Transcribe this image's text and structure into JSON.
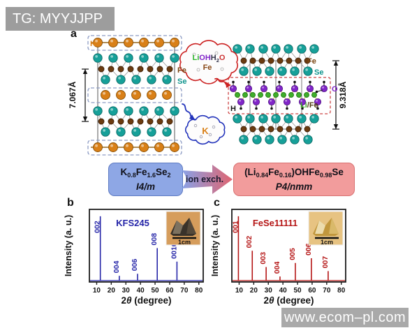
{
  "tag": "TG: MYYJJPP",
  "website": "www.ecom–pl.com",
  "panel_a": {
    "label": "a",
    "left_structure": {
      "k_label": "K",
      "fe_label": "Fe",
      "se_label": "Se",
      "height_label": "7.067Å",
      "k_color": "#d98018",
      "fe_color": "#6b3b10",
      "se_color": "#16a099"
    },
    "right_structure": {
      "fe_label": "Fe",
      "se_label": "Se",
      "o_label": "O",
      "life_label": [
        {
          "t": "Li",
          "c": "#3fae2a"
        },
        {
          "t": "/Fe",
          "c": "#4f3a10"
        }
      ],
      "h_label": "H",
      "height_label": "9.318Å",
      "o_color": "#8126c9",
      "life_color": "#3fae2a"
    },
    "cloud_in": {
      "line1": [
        {
          "t": "Li",
          "c": "#2db52d"
        },
        {
          "t": "OH",
          "c": "#8126c9"
        },
        {
          "t": "H",
          "c": "#33334a"
        },
        {
          "t": "2",
          "c": "#33334a",
          "sub": true
        },
        {
          "t": "O",
          "c": "#cc3333"
        }
      ],
      "line2": "Fe"
    },
    "cloud_out": "K",
    "reaction": {
      "reactant_formula": [
        {
          "t": "K"
        },
        {
          "t": "0.8",
          "sub": true
        },
        {
          "t": "Fe"
        },
        {
          "t": "1.6",
          "sub": true
        },
        {
          "t": "Se"
        },
        {
          "t": "2",
          "sub": true
        }
      ],
      "reactant_space_group": "I4/m",
      "arrow_label": "ion exch.",
      "product_formula": [
        {
          "t": "(Li"
        },
        {
          "t": "0.84",
          "sub": true
        },
        {
          "t": "Fe"
        },
        {
          "t": "0.16",
          "sub": true
        },
        {
          "t": ")OHFe"
        },
        {
          "t": "0.98",
          "sub": true
        },
        {
          "t": "Se"
        }
      ],
      "product_space_group": "P4/nmm"
    }
  },
  "chart_data": [
    {
      "type": "bar",
      "panel": "b",
      "sample_label": "KFS245",
      "color": "#2525a8",
      "xlabel": "2θ (degree)",
      "xlabel_parts": [
        {
          "t": "2"
        },
        {
          "t": "θ",
          "i": true
        },
        {
          "t": " (degree)"
        }
      ],
      "ylabel": "Intensity (a. u.)",
      "xlim": [
        5,
        83
      ],
      "xticks": [
        10,
        20,
        30,
        40,
        50,
        60,
        70,
        80
      ],
      "peaks": [
        {
          "hkl": "002",
          "two_theta": 12.5,
          "height": 0.95
        },
        {
          "hkl": "004",
          "two_theta": 25.5,
          "height": 0.07
        },
        {
          "hkl": "006",
          "two_theta": 38.0,
          "height": 0.1
        },
        {
          "hkl": "008",
          "two_theta": 51.5,
          "height": 0.48
        },
        {
          "hkl": "0010",
          "two_theta": 65.0,
          "height": 0.28
        }
      ],
      "inset": {
        "scale_label": "1cm",
        "bg": "#d69d5c",
        "crystal": "#39322a",
        "crystal_light": "#7d7260",
        "crystal_mid": "#55493a"
      }
    },
    {
      "type": "bar",
      "panel": "c",
      "sample_label": "FeSe11111",
      "color": "#b51616",
      "xlabel": "2θ (degree)",
      "xlabel_parts": [
        {
          "t": "2"
        },
        {
          "t": "θ",
          "i": true
        },
        {
          "t": " (degree)"
        }
      ],
      "ylabel": "Intensity (a. u.)",
      "xlim": [
        5,
        83
      ],
      "xticks": [
        10,
        20,
        30,
        40,
        50,
        60,
        70,
        80
      ],
      "peaks": [
        {
          "hkl": "001",
          "two_theta": 9.5,
          "height": 0.95
        },
        {
          "hkl": "002",
          "two_theta": 19.0,
          "height": 0.44
        },
        {
          "hkl": "003",
          "two_theta": 28.5,
          "height": 0.2
        },
        {
          "hkl": "004",
          "two_theta": 38.0,
          "height": 0.06
        },
        {
          "hkl": "005",
          "two_theta": 48.5,
          "height": 0.26
        },
        {
          "hkl": "006",
          "two_theta": 59.5,
          "height": 0.33
        },
        {
          "hkl": "007",
          "two_theta": 71.0,
          "height": 0.14
        }
      ],
      "inset": {
        "scale_label": "1cm",
        "bg": "#e7c382",
        "crystal": "#c1973d",
        "crystal_light": "#ecdcae",
        "crystal_mid": "#d9b96a"
      }
    }
  ]
}
